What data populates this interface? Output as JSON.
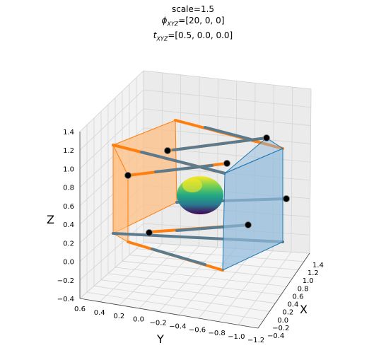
{
  "chart_data": {
    "type": "3d-scatter",
    "title_lines": [
      "scale=1.5",
      "ϕ",
      "XYZ",
      "=[20, 0, 0]",
      "t",
      "XYZ",
      "=[0.5, 0.0, 0.0]"
    ],
    "xlabel": "X",
    "ylabel": "Y",
    "zlabel": "Z",
    "x_ticks": [
      "−0.4",
      "−0.2",
      "0.0",
      "0.2",
      "0.4",
      "0.6",
      "0.8",
      "1.0",
      "1.2",
      "1.4"
    ],
    "y_ticks": [
      "0.6",
      "0.4",
      "0.2",
      "0.0",
      "−0.2",
      "−0.4",
      "−0.6",
      "−0.8",
      "−1.0",
      "−1.2"
    ],
    "z_ticks": [
      "−0.4",
      "−0.2",
      "0.0",
      "0.2",
      "0.4",
      "0.6",
      "0.8",
      "1.0",
      "1.2",
      "1.4"
    ],
    "xlim": [
      -0.4,
      1.4
    ],
    "ylim": [
      -1.2,
      0.6
    ],
    "zlim": [
      -0.4,
      1.4
    ],
    "grid": true,
    "colors": {
      "orange": "#ff7f0e",
      "blue": "#1f77b4",
      "orange_fill": "#ffbf86",
      "blue_fill": "#8fbadb",
      "ray": "#5a7a8e",
      "marker": "#000000"
    },
    "orange_frustum_corners": [
      [
        0.0,
        0.35,
        1.2
      ],
      [
        0.0,
        0.7,
        1.0
      ],
      [
        0.0,
        0.7,
        0.0
      ],
      [
        0.0,
        0.35,
        -0.2
      ]
    ],
    "blue_frustum_corners": [
      [
        1.0,
        -0.55,
        1.1
      ],
      [
        1.0,
        -0.95,
        0.8
      ],
      [
        1.0,
        -0.95,
        -0.15
      ],
      [
        1.0,
        -0.55,
        0.1
      ]
    ],
    "markers": [
      [
        0.0,
        0.25,
        1.05
      ],
      [
        0.0,
        0.55,
        0.85
      ],
      [
        0.0,
        0.3,
        0.1
      ],
      [
        0.95,
        -0.45,
        1.05
      ],
      [
        0.95,
        -0.85,
        0.55
      ],
      [
        0.95,
        -0.5,
        0.15
      ],
      [
        0.7,
        -0.2,
        0.95
      ]
    ],
    "object": {
      "shape": "ellipsoid",
      "colormap": "viridis"
    }
  }
}
